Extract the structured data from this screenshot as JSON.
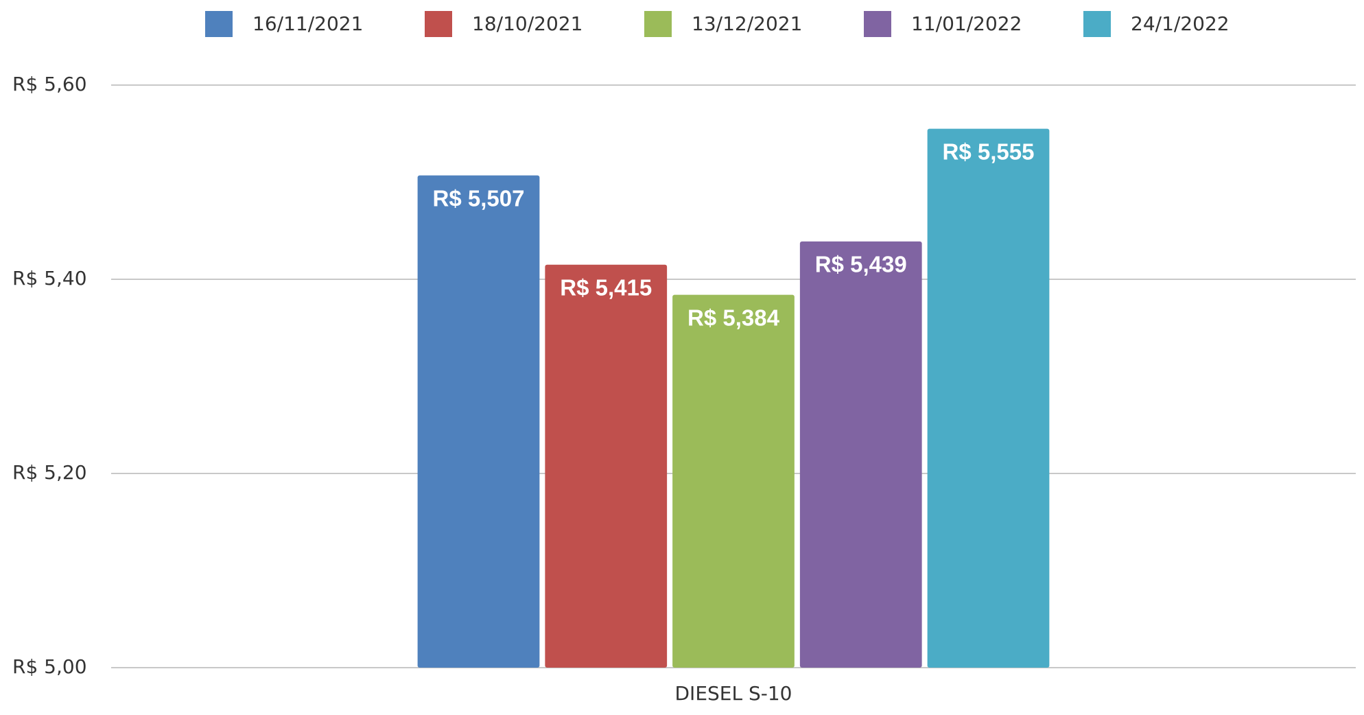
{
  "chart_data": {
    "type": "bar",
    "categories": [
      "DIESEL S-10"
    ],
    "series": [
      {
        "name": "16/11/2021",
        "color": "#4f81bd",
        "values": [
          5.507
        ],
        "value_labels": [
          "R$ 5,507"
        ]
      },
      {
        "name": "18/10/2021",
        "color": "#c0504d",
        "values": [
          5.415
        ],
        "value_labels": [
          "R$ 5,415"
        ]
      },
      {
        "name": "13/12/2021",
        "color": "#9bbb59",
        "values": [
          5.384
        ],
        "value_labels": [
          "R$ 5,384"
        ]
      },
      {
        "name": "11/01/2022",
        "color": "#8064a2",
        "values": [
          5.439
        ],
        "value_labels": [
          "R$ 5,439"
        ]
      },
      {
        "name": "24/1/2022",
        "color": "#4bacc6",
        "values": [
          5.555
        ],
        "value_labels": [
          "R$ 5,555"
        ]
      }
    ],
    "ylim": [
      5.0,
      5.6
    ],
    "yticks": [
      {
        "value": 5.0,
        "label": "R$ 5,00"
      },
      {
        "value": 5.2,
        "label": "R$ 5,20"
      },
      {
        "value": 5.4,
        "label": "R$ 5,40"
      },
      {
        "value": 5.6,
        "label": "R$ 5,60"
      }
    ],
    "grid": true,
    "legend": "top"
  }
}
